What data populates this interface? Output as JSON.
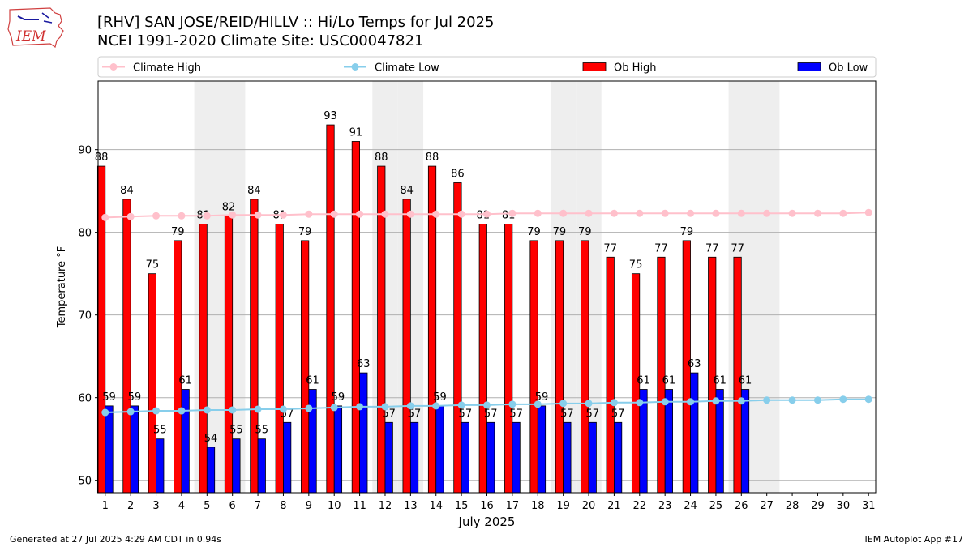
{
  "header": {
    "logo_text": "IEM",
    "title_line1": "[RHV] SAN JOSE/REID/HILLV :: Hi/Lo Temps for Jul 2025",
    "title_line2": "NCEI 1991-2020 Climate Site: USC00047821"
  },
  "footer": {
    "left": "Generated at 27 Jul 2025 4:29 AM CDT in 0.94s",
    "right": "IEM Autoplot App #17"
  },
  "colors": {
    "ob_high": "#ff0000",
    "ob_low": "#0000ff",
    "climate_high": "#ffc0cb",
    "climate_low": "#87ceeb",
    "weekend_shade": "#eeeeee",
    "grid": "#b0b0b0"
  },
  "chart_data": {
    "type": "bar",
    "xlabel": "July 2025",
    "ylabel": "Temperature °F",
    "ylim": [
      48.5,
      98.3
    ],
    "yticks": [
      50,
      60,
      70,
      80,
      90
    ],
    "grid": "horizontal",
    "legend_placement": "top",
    "categories": [
      "1",
      "2",
      "3",
      "4",
      "5",
      "6",
      "7",
      "8",
      "9",
      "10",
      "11",
      "12",
      "13",
      "14",
      "15",
      "16",
      "17",
      "18",
      "19",
      "20",
      "21",
      "22",
      "23",
      "24",
      "25",
      "26",
      "27",
      "28",
      "29",
      "30",
      "31"
    ],
    "shaded_days": [
      5,
      6,
      12,
      13,
      19,
      20,
      26,
      27
    ],
    "series": [
      {
        "name": "Climate High",
        "kind": "line",
        "values": [
          81.8,
          81.9,
          82.0,
          82.0,
          82.0,
          82.1,
          82.1,
          82.1,
          82.2,
          82.2,
          82.2,
          82.2,
          82.2,
          82.2,
          82.2,
          82.2,
          82.3,
          82.3,
          82.3,
          82.3,
          82.3,
          82.3,
          82.3,
          82.3,
          82.3,
          82.3,
          82.3,
          82.3,
          82.3,
          82.3,
          82.4
        ]
      },
      {
        "name": "Climate Low",
        "kind": "line",
        "values": [
          58.2,
          58.3,
          58.4,
          58.4,
          58.5,
          58.5,
          58.6,
          58.6,
          58.7,
          58.8,
          58.9,
          58.9,
          59.0,
          59.0,
          59.1,
          59.1,
          59.2,
          59.2,
          59.3,
          59.3,
          59.4,
          59.4,
          59.5,
          59.5,
          59.6,
          59.6,
          59.7,
          59.7,
          59.7,
          59.8,
          59.8
        ]
      },
      {
        "name": "Ob High",
        "kind": "bar",
        "values": [
          88,
          84,
          75,
          79,
          81,
          82,
          84,
          81,
          79,
          93,
          91,
          88,
          84,
          88,
          86,
          81,
          81,
          79,
          79,
          79,
          77,
          75,
          77,
          79,
          77,
          77,
          null,
          null,
          null,
          null,
          null
        ]
      },
      {
        "name": "Ob Low",
        "kind": "bar",
        "values": [
          59,
          59,
          55,
          61,
          54,
          55,
          55,
          57,
          61,
          59,
          63,
          57,
          57,
          59,
          57,
          57,
          57,
          59,
          57,
          57,
          57,
          61,
          61,
          63,
          61,
          61,
          null,
          null,
          null,
          null,
          null
        ]
      }
    ]
  }
}
